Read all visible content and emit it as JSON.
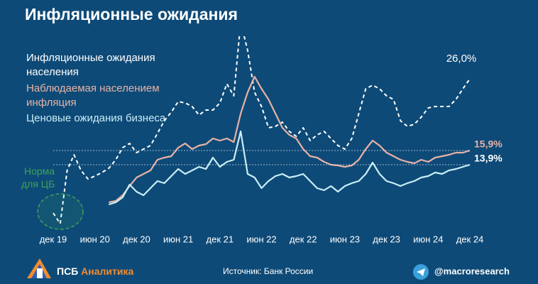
{
  "header": {
    "title": "Инфляционные ожидания"
  },
  "chart_data": {
    "type": "line",
    "categories": [
      "дек 19",
      null,
      null,
      null,
      null,
      null,
      "июн 20",
      null,
      null,
      null,
      null,
      null,
      "дек 20",
      null,
      null,
      null,
      null,
      null,
      "июн 21",
      null,
      null,
      null,
      null,
      null,
      "дек 21",
      null,
      null,
      null,
      null,
      null,
      "июн 22",
      null,
      null,
      null,
      null,
      null,
      "дек 22",
      null,
      null,
      null,
      null,
      null,
      "июн 23",
      null,
      null,
      null,
      null,
      null,
      "дек 23",
      null,
      null,
      null,
      null,
      null,
      "июн 24",
      null,
      null,
      null,
      null,
      null,
      "дек 24"
    ],
    "ylim": [
      5,
      32
    ],
    "annotation": "Норма для ЦБ",
    "series": [
      {
        "name": "Инфляционные ожидания населения",
        "color": "#ffffff",
        "dashed": true,
        "values": [
          7.1,
          5.6,
          13.1,
          15.3,
          13.1,
          11.9,
          12.3,
          12.8,
          13.4,
          14.6,
          16.3,
          16.9,
          15.6,
          16.1,
          16.6,
          18.3,
          20.1,
          21.3,
          22.8,
          22.6,
          22.1,
          20.9,
          21.6,
          21.6,
          22.6,
          25.3,
          23.6,
          34,
          30,
          24.1,
          22.1,
          19.1,
          19.3,
          19.9,
          18.6,
          17.9,
          19.1,
          17.3,
          18.1,
          18.6,
          17.6,
          16.6,
          16.1,
          17.6,
          21.1,
          24.6,
          25.1,
          24.6,
          23.6,
          23.1,
          20.1,
          19.3,
          19.6,
          20.6,
          21.9,
          22.1,
          22.1,
          22.1,
          23.1,
          24.6,
          26.0
        ],
        "value_labels": [
          null,
          null,
          null,
          null,
          null,
          null,
          null,
          null,
          null,
          null,
          null,
          null,
          null,
          null,
          null,
          null,
          null,
          null,
          null,
          null,
          null,
          null,
          null,
          null,
          null,
          null,
          null,
          null,
          null,
          null,
          null,
          null,
          null,
          null,
          null,
          null,
          null,
          null,
          null,
          null,
          null,
          null,
          null,
          null,
          null,
          null,
          null,
          null,
          null,
          null,
          null,
          null,
          null,
          null,
          null,
          null,
          null,
          null,
          null,
          null,
          "26,0%"
        ]
      },
      {
        "name": "Наблюдаемая населением инфляция",
        "color": "#e6b2a6",
        "dashed": false,
        "values": [
          null,
          null,
          null,
          null,
          null,
          null,
          null,
          null,
          8.6,
          8.8,
          9.6,
          10.9,
          12.1,
          12.6,
          13.1,
          14.6,
          14.9,
          15.1,
          16.3,
          16.9,
          16.1,
          16.6,
          16.8,
          17.6,
          17.3,
          17.6,
          17.1,
          21.1,
          24.1,
          26.3,
          24.6,
          23.1,
          21.1,
          19.1,
          18.1,
          17.6,
          16.1,
          15.1,
          14.9,
          14.3,
          13.9,
          13.8,
          13.6,
          13.8,
          14.6,
          16.1,
          17.3,
          16.6,
          15.6,
          15.1,
          14.6,
          14.3,
          14.1,
          14.6,
          14.3,
          14.9,
          15.1,
          15.3,
          15.6,
          15.6,
          15.9
        ],
        "value_labels": [
          null,
          null,
          null,
          null,
          null,
          null,
          null,
          null,
          null,
          null,
          null,
          null,
          null,
          null,
          null,
          null,
          null,
          null,
          null,
          null,
          null,
          null,
          null,
          null,
          null,
          null,
          null,
          null,
          null,
          null,
          null,
          null,
          null,
          null,
          null,
          null,
          null,
          null,
          null,
          null,
          null,
          null,
          null,
          null,
          null,
          null,
          null,
          null,
          null,
          null,
          null,
          null,
          null,
          null,
          null,
          null,
          null,
          null,
          null,
          null,
          "15,9%"
        ]
      },
      {
        "name": "Ценовые ожидания бизнеса",
        "color": "#c9eef6",
        "dashed": false,
        "values": [
          null,
          null,
          null,
          null,
          null,
          null,
          null,
          null,
          8.3,
          8.6,
          9.3,
          11.1,
          10.1,
          9.6,
          10.6,
          11.6,
          11.3,
          12.3,
          13.3,
          12.6,
          13.1,
          13.6,
          13.3,
          14.9,
          13.6,
          14.3,
          14.6,
          18.6,
          12.6,
          12.1,
          10.6,
          11.6,
          12.3,
          12.6,
          12.1,
          12.3,
          12.6,
          11.6,
          10.6,
          10.3,
          10.9,
          10.1,
          10.9,
          11.3,
          11.6,
          12.6,
          14.2,
          12.6,
          11.6,
          11.3,
          10.9,
          11.3,
          11.6,
          12.1,
          12.3,
          12.8,
          12.6,
          13.1,
          13.3,
          13.6,
          13.9
        ],
        "value_labels": [
          null,
          null,
          null,
          null,
          null,
          null,
          null,
          null,
          null,
          null,
          null,
          null,
          null,
          null,
          null,
          null,
          null,
          null,
          null,
          null,
          null,
          null,
          null,
          null,
          null,
          null,
          null,
          null,
          null,
          null,
          null,
          null,
          null,
          null,
          null,
          null,
          null,
          null,
          null,
          null,
          null,
          null,
          null,
          null,
          null,
          null,
          null,
          null,
          null,
          null,
          null,
          null,
          null,
          null,
          null,
          null,
          null,
          null,
          null,
          null,
          "13,9%"
        ]
      }
    ]
  },
  "footer": {
    "brand": "ПСБ",
    "brand_suffix": "Аналитика",
    "source": "Источник: Банк России",
    "channel": "@macroresearch"
  }
}
